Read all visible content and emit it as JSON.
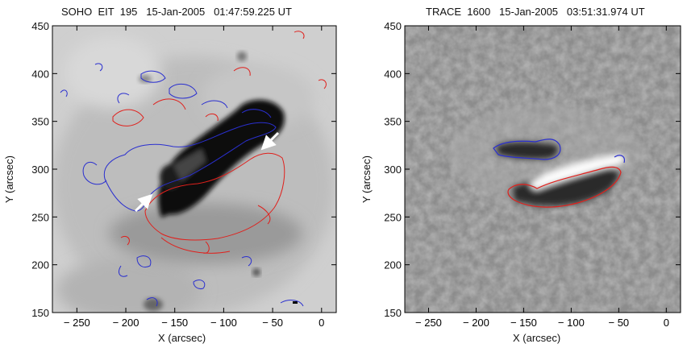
{
  "panels": [
    {
      "title": "SOHO  EIT  195   15-Jan-2005   01:47:59.225 UT",
      "xlabel": "X (arcsec)",
      "ylabel": "Y (arcsec)"
    },
    {
      "title": "TRACE  1600   15-Jan-2005   03:51:31.974 UT",
      "xlabel": "X (arcsec)",
      "ylabel": "Y (arcsec)"
    }
  ],
  "chart_data": [
    {
      "type": "heatmap",
      "title": "SOHO  EIT  195   15-Jan-2005   01:47:59.225 UT",
      "xlabel": "X (arcsec)",
      "ylabel": "Y (arcsec)",
      "xlim": [
        -275,
        15
      ],
      "ylim": [
        150,
        450
      ],
      "xticks": [
        -250,
        -200,
        -150,
        -100,
        -50,
        0
      ],
      "yticks": [
        150,
        200,
        250,
        300,
        350,
        400,
        450
      ],
      "background": "grayscale inverted EUV image, dark elongated active region",
      "contours": [
        {
          "color": "#2a2fcf",
          "label": ""
        },
        {
          "color": "#e0201c",
          "label": ""
        }
      ],
      "annotations": [
        {
          "type": "arrow",
          "color": "#ffffff",
          "tip": [
            -178,
            278
          ]
        },
        {
          "type": "arrow",
          "color": "#ffffff",
          "tip": [
            -60,
            320
          ]
        }
      ]
    },
    {
      "type": "heatmap",
      "title": "TRACE  1600   15-Jan-2005   03:51:31.974 UT",
      "xlabel": "X (arcsec)",
      "ylabel": "Y (arcsec)",
      "xlim": [
        -275,
        15
      ],
      "ylim": [
        150,
        450
      ],
      "xticks": [
        -250,
        -200,
        -150,
        -100,
        -50,
        0
      ],
      "yticks": [
        150,
        200,
        250,
        300,
        350,
        400,
        450
      ],
      "background": "grayscale UV image, bright flare ribbons",
      "contours": [
        {
          "color": "#2a2fcf",
          "label": ""
        },
        {
          "color": "#e0201c",
          "label": ""
        }
      ]
    }
  ]
}
